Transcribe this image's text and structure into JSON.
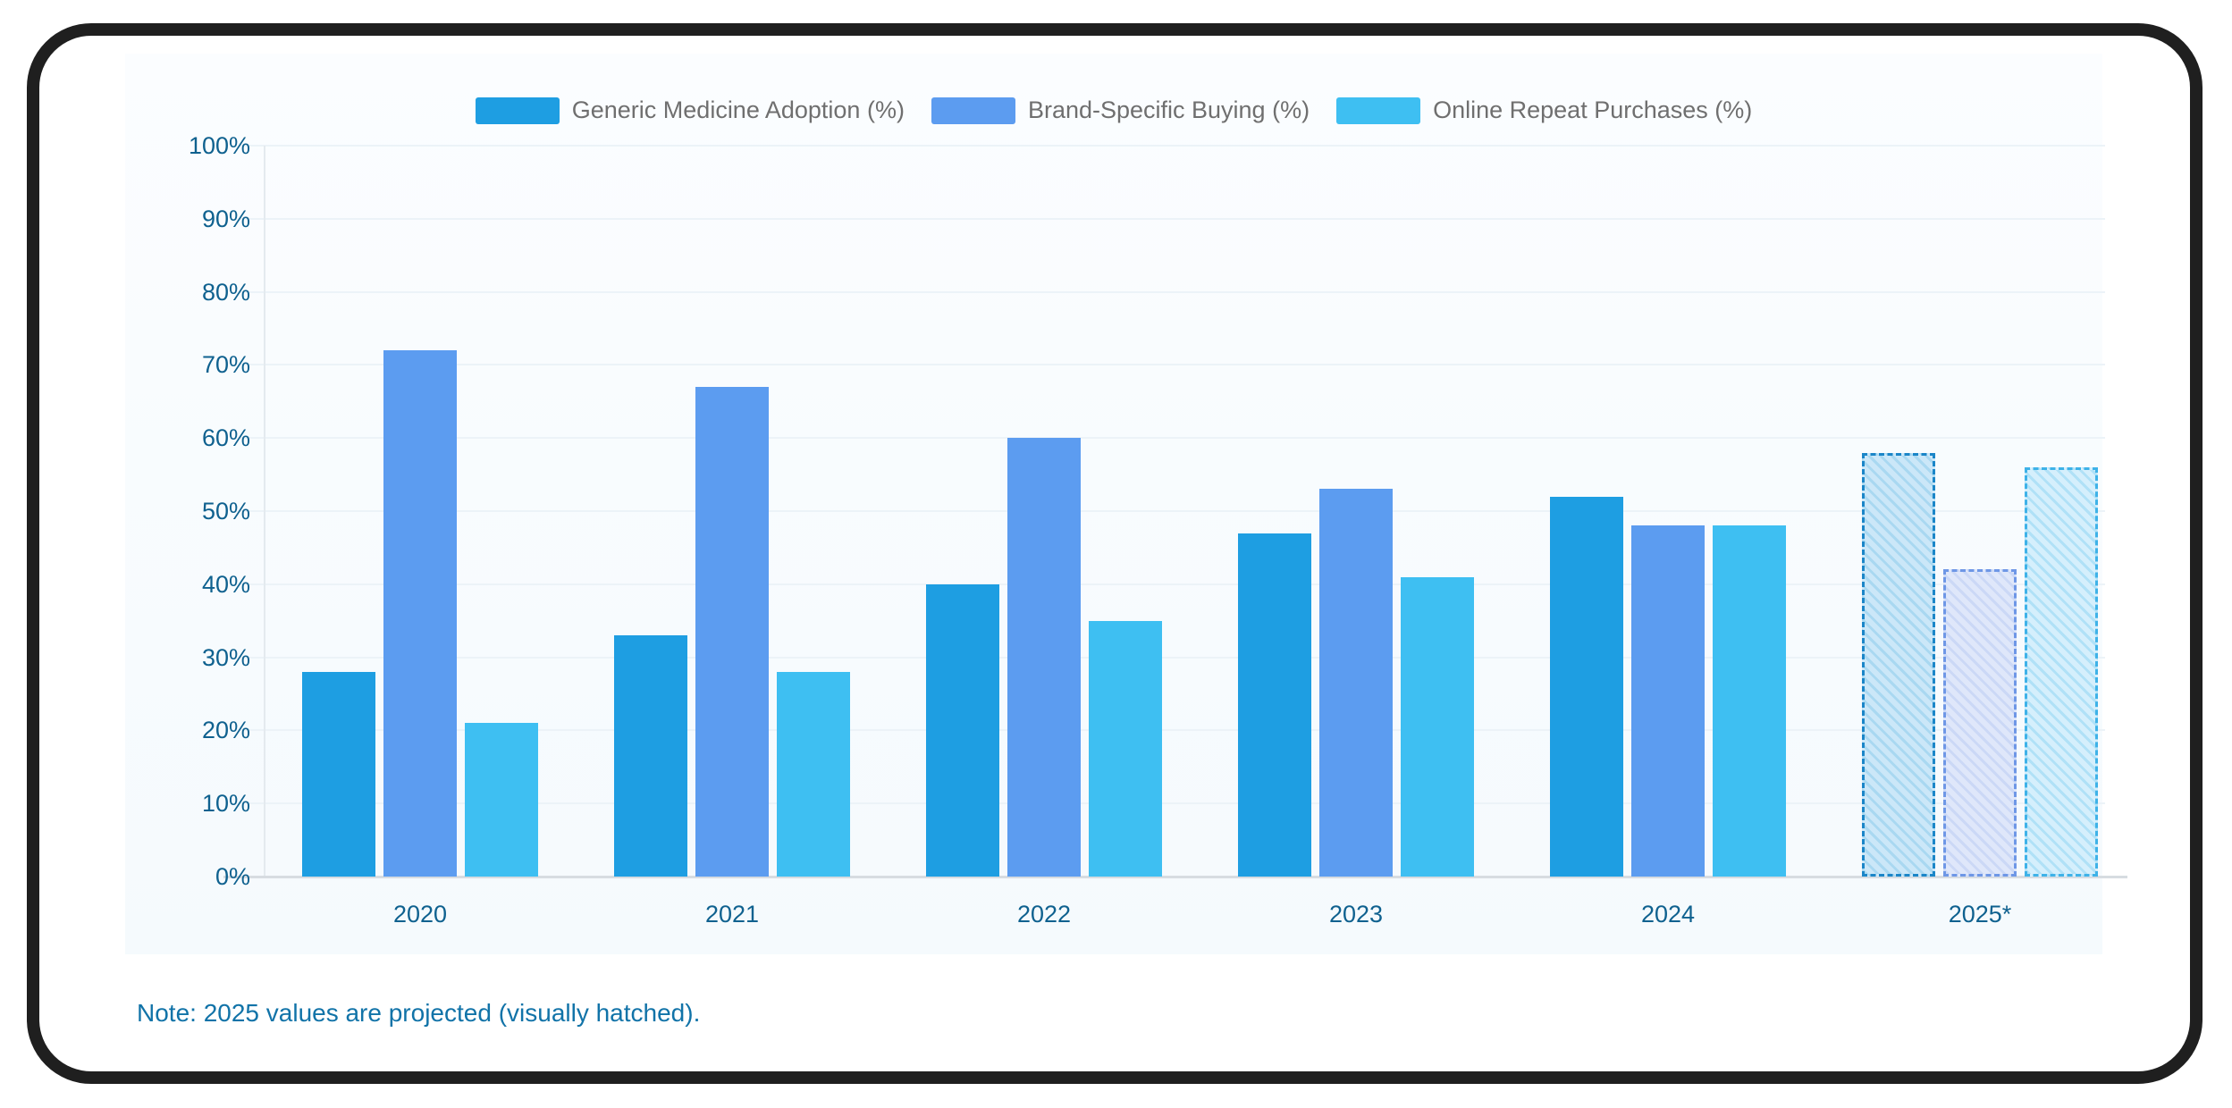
{
  "note": "Note: 2025 values are projected (visually hatched).",
  "legend": {
    "items": [
      {
        "label": "Generic Medicine Adoption (%)"
      },
      {
        "label": "Brand-Specific Buying (%)"
      },
      {
        "label": "Online Repeat Purchases (%)"
      }
    ]
  },
  "chart_data": {
    "type": "bar",
    "categories": [
      "2020",
      "2021",
      "2022",
      "2023",
      "2024",
      "2025*"
    ],
    "series": [
      {
        "name": "Generic Medicine Adoption (%)",
        "color": "#1E9EE2",
        "values": [
          28,
          33,
          40,
          47,
          52,
          58
        ],
        "projected_style": {
          "fill": "#CBE7F8",
          "stripe": "#A9D8F1",
          "border": "#1B86C8"
        }
      },
      {
        "name": "Brand-Specific Buying (%)",
        "color": "#5C9CF0",
        "values": [
          72,
          67,
          60,
          53,
          48,
          42
        ],
        "projected_style": {
          "fill": "#DFE7FA",
          "stripe": "#CBD8F6",
          "border": "#6E97E6"
        }
      },
      {
        "name": "Online Repeat Purchases (%)",
        "color": "#3EBFF2",
        "values": [
          21,
          28,
          35,
          41,
          48,
          56
        ],
        "projected_style": {
          "fill": "#D5EFFC",
          "stripe": "#B0E1F7",
          "border": "#3EB2E8"
        }
      }
    ],
    "ylim": [
      0,
      100
    ],
    "ytick_step": 10,
    "ytick_suffix": "%",
    "grid": true,
    "legend_position": "top",
    "projected_categories": [
      "2025*"
    ]
  },
  "colors": {
    "frame": "#1F1F1F",
    "page_bg": "#FFFFFF",
    "card_bg": "#F7FBFE",
    "axis_label": "#0F618F",
    "legend_label": "#6F6F6F",
    "gridline": "#ECF3F8",
    "baseline": "#D7DCE1",
    "note_text": "#1173A8"
  }
}
